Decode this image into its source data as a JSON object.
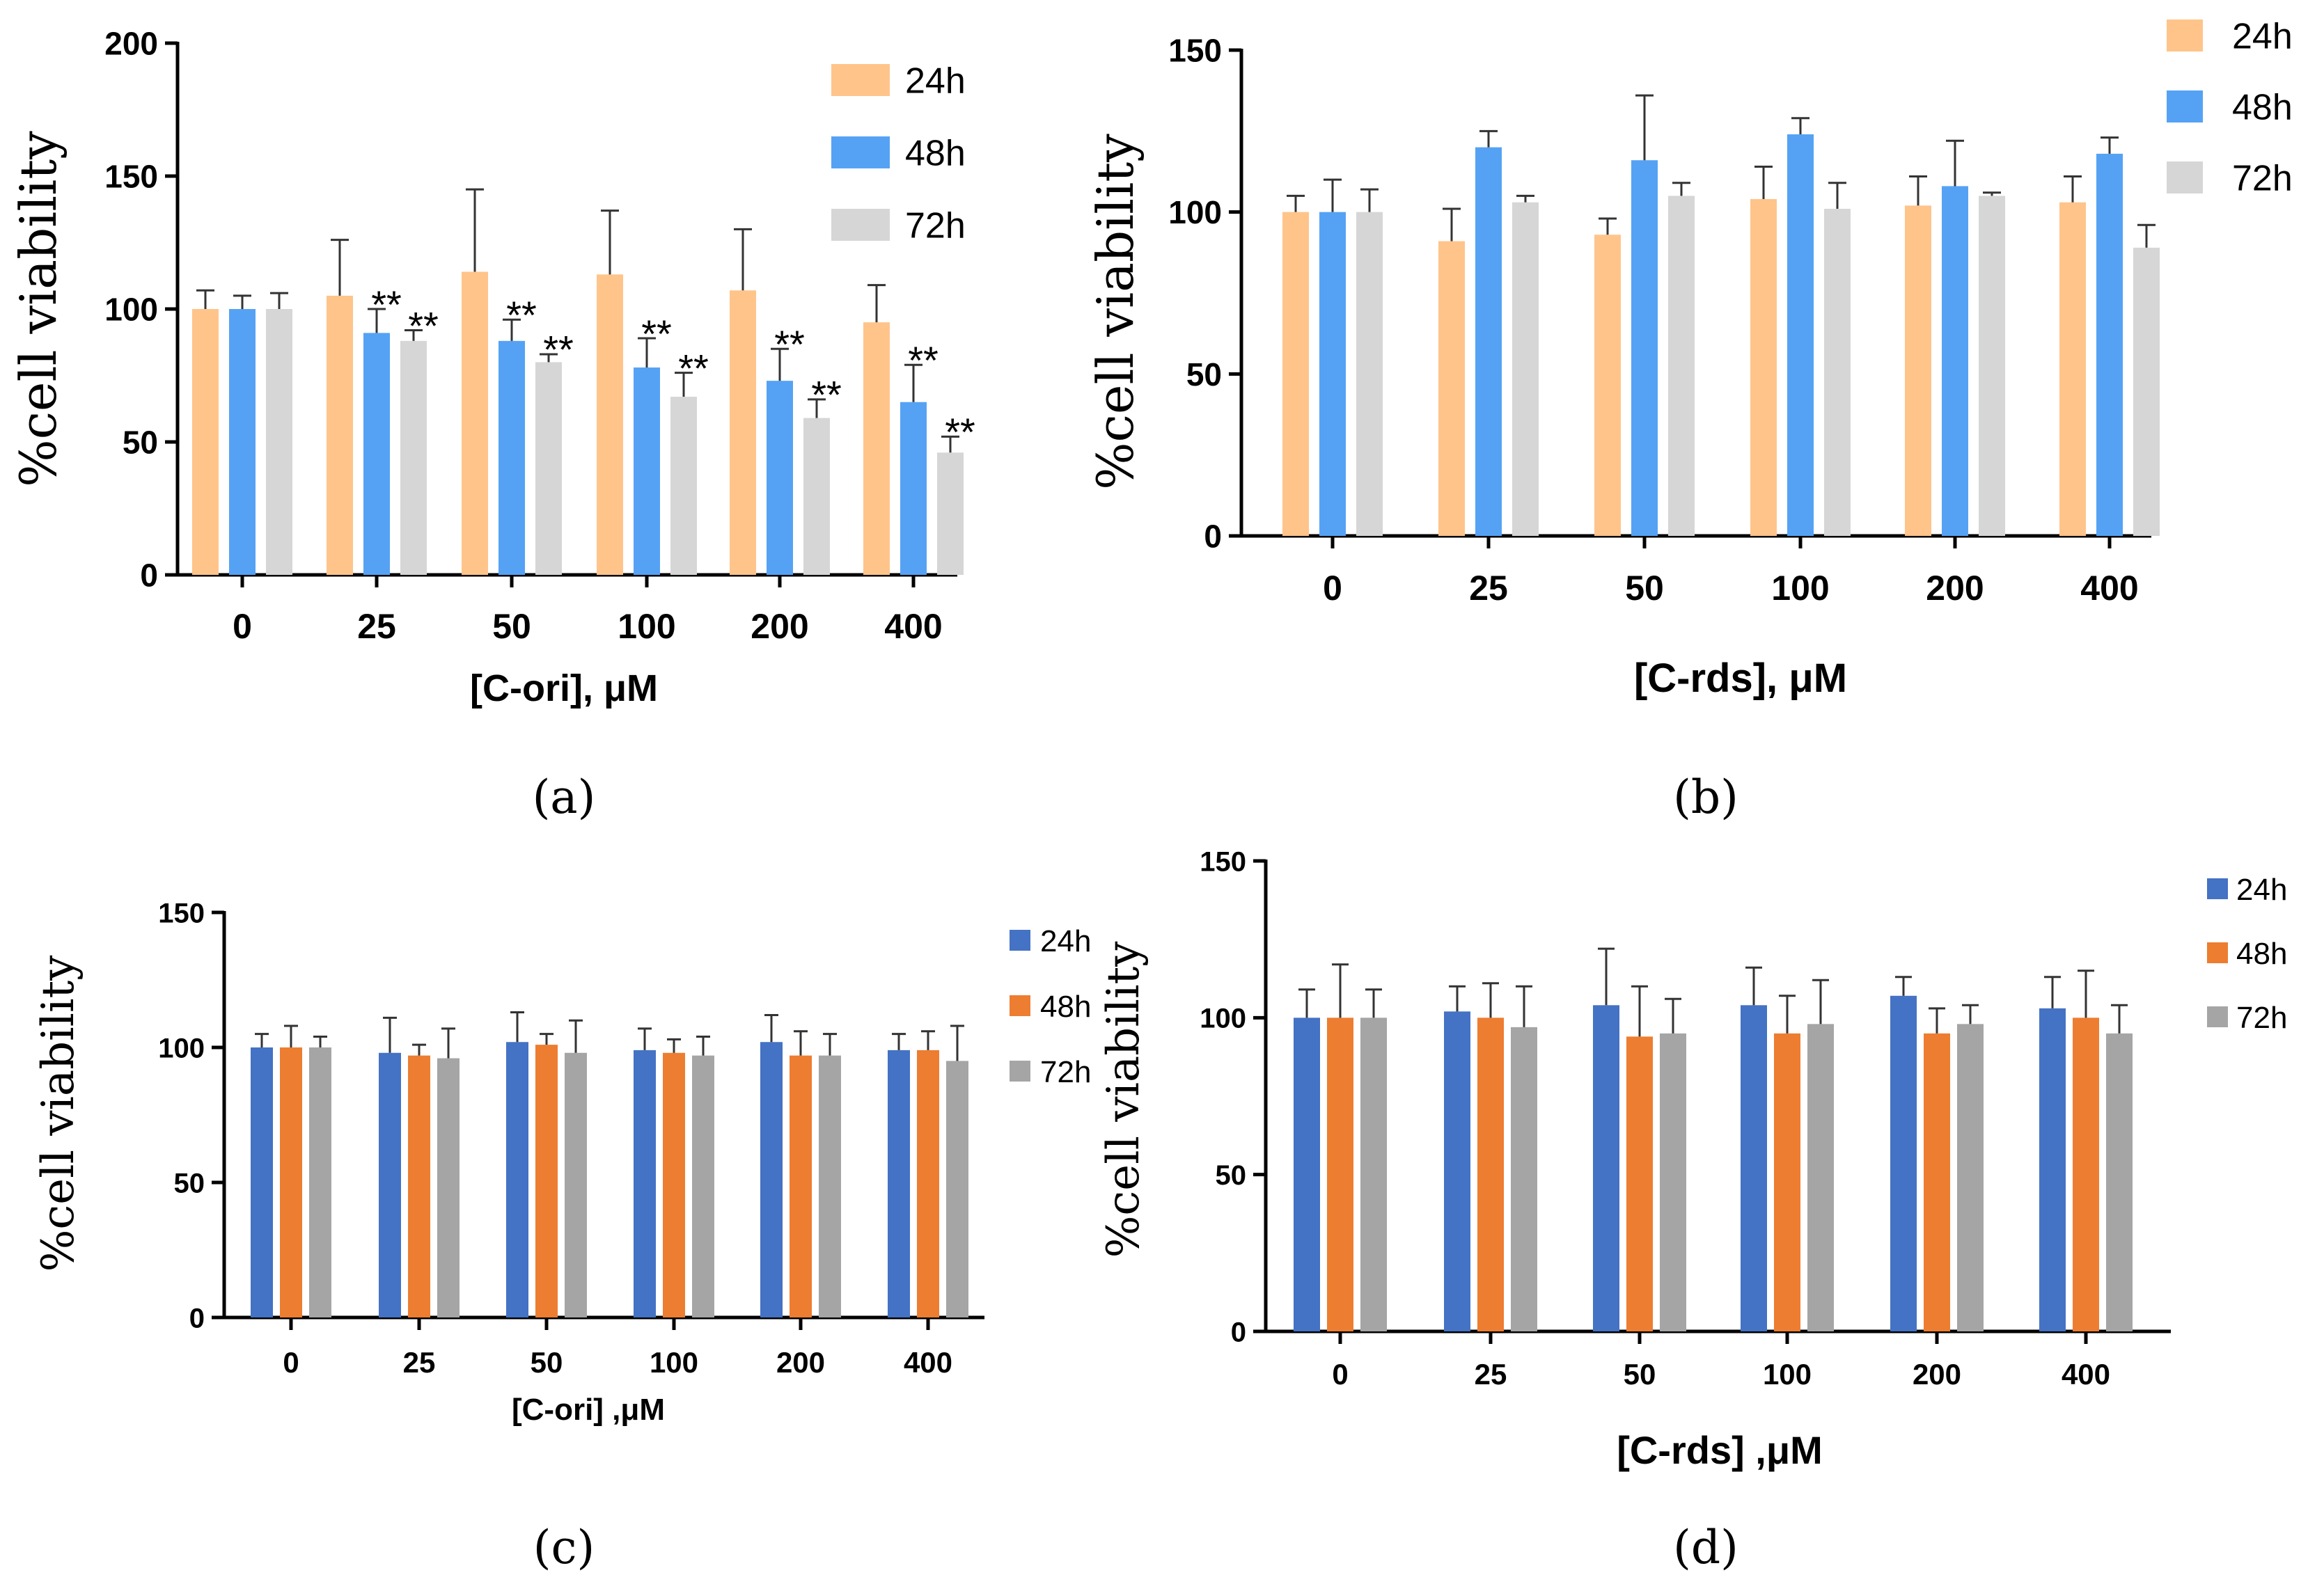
{
  "chart_data": [
    {
      "panel": "(a)",
      "type": "bar",
      "categories": [
        "0",
        "25",
        "50",
        "100",
        "200",
        "400"
      ],
      "xlabel": "[C-ori], μM",
      "ylabel": "%cell viability",
      "ylim": [
        0,
        200
      ],
      "yticks": [
        0,
        50,
        100,
        150,
        200
      ],
      "legend_position": "top-right",
      "series": [
        {
          "name": "24h",
          "color": "#FFC48A",
          "values": [
            100,
            105,
            114,
            113,
            107,
            95
          ],
          "errors": [
            7,
            21,
            31,
            24,
            23,
            14
          ]
        },
        {
          "name": "48h",
          "color": "#55A2F5",
          "values": [
            100,
            91,
            88,
            78,
            73,
            65
          ],
          "errors": [
            5,
            9,
            8,
            11,
            12,
            14
          ]
        },
        {
          "name": "72h",
          "color": "#D6D6D6",
          "values": [
            100,
            88,
            80,
            67,
            59,
            46
          ],
          "errors": [
            6,
            4,
            3,
            9,
            7,
            6
          ]
        }
      ],
      "annotations": [
        {
          "category": "25",
          "series": "48h",
          "text": "**"
        },
        {
          "category": "25",
          "series": "72h",
          "text": "**"
        },
        {
          "category": "50",
          "series": "48h",
          "text": "**"
        },
        {
          "category": "50",
          "series": "72h",
          "text": "**"
        },
        {
          "category": "100",
          "series": "48h",
          "text": "**"
        },
        {
          "category": "100",
          "series": "72h",
          "text": "**"
        },
        {
          "category": "200",
          "series": "48h",
          "text": "**"
        },
        {
          "category": "200",
          "series": "72h",
          "text": "**"
        },
        {
          "category": "400",
          "series": "48h",
          "text": "**"
        },
        {
          "category": "400",
          "series": "72h",
          "text": "**"
        }
      ]
    },
    {
      "panel": "(b)",
      "type": "bar",
      "categories": [
        "0",
        "25",
        "50",
        "100",
        "200",
        "400"
      ],
      "xlabel": "[C-rds], μM",
      "ylabel": "%cell viability",
      "ylim": [
        0,
        150
      ],
      "yticks": [
        0,
        50,
        100,
        150
      ],
      "legend_position": "top-right",
      "series": [
        {
          "name": "24h",
          "color": "#FFC48A",
          "values": [
            100,
            91,
            93,
            104,
            102,
            103
          ],
          "errors": [
            5,
            10,
            5,
            10,
            9,
            8
          ]
        },
        {
          "name": "48h",
          "color": "#55A2F5",
          "values": [
            100,
            120,
            116,
            124,
            108,
            118
          ],
          "errors": [
            10,
            5,
            20,
            5,
            14,
            5
          ]
        },
        {
          "name": "72h",
          "color": "#D6D6D6",
          "values": [
            100,
            103,
            105,
            101,
            105,
            89
          ],
          "errors": [
            7,
            2,
            4,
            8,
            1,
            7
          ]
        }
      ],
      "annotations": []
    },
    {
      "panel": "(c)",
      "type": "bar",
      "categories": [
        "0",
        "25",
        "50",
        "100",
        "200",
        "400"
      ],
      "xlabel": "[C-ori] ,μM",
      "ylabel": "%cell viability",
      "ylim": [
        0,
        150
      ],
      "yticks": [
        0,
        50,
        100,
        150
      ],
      "legend_position": "right",
      "series": [
        {
          "name": "24h",
          "color": "#4472C4",
          "values": [
            100,
            98,
            102,
            99,
            102,
            99
          ],
          "errors": [
            5,
            13,
            11,
            8,
            10,
            6
          ]
        },
        {
          "name": "48h",
          "color": "#ED7D31",
          "values": [
            100,
            97,
            101,
            98,
            97,
            99
          ],
          "errors": [
            8,
            4,
            4,
            5,
            9,
            7
          ]
        },
        {
          "name": "72h",
          "color": "#A5A5A5",
          "values": [
            100,
            96,
            98,
            97,
            97,
            95
          ],
          "errors": [
            4,
            11,
            12,
            7,
            8,
            13
          ]
        }
      ],
      "annotations": []
    },
    {
      "panel": "(d)",
      "type": "bar",
      "categories": [
        "0",
        "25",
        "50",
        "100",
        "200",
        "400"
      ],
      "xlabel": "[C-rds] ,μM",
      "ylabel": "%cell viability",
      "ylim": [
        0,
        150
      ],
      "yticks": [
        0,
        50,
        100,
        150
      ],
      "legend_position": "right",
      "series": [
        {
          "name": "24h",
          "color": "#4472C4",
          "values": [
            100,
            102,
            104,
            104,
            107,
            103
          ],
          "errors": [
            9,
            8,
            18,
            12,
            6,
            10
          ]
        },
        {
          "name": "48h",
          "color": "#ED7D31",
          "values": [
            100,
            100,
            94,
            95,
            95,
            100
          ],
          "errors": [
            17,
            11,
            16,
            12,
            8,
            15
          ]
        },
        {
          "name": "72h",
          "color": "#A5A5A5",
          "values": [
            100,
            97,
            95,
            98,
            98,
            95
          ],
          "errors": [
            9,
            13,
            11,
            14,
            6,
            9
          ]
        }
      ],
      "annotations": []
    }
  ]
}
